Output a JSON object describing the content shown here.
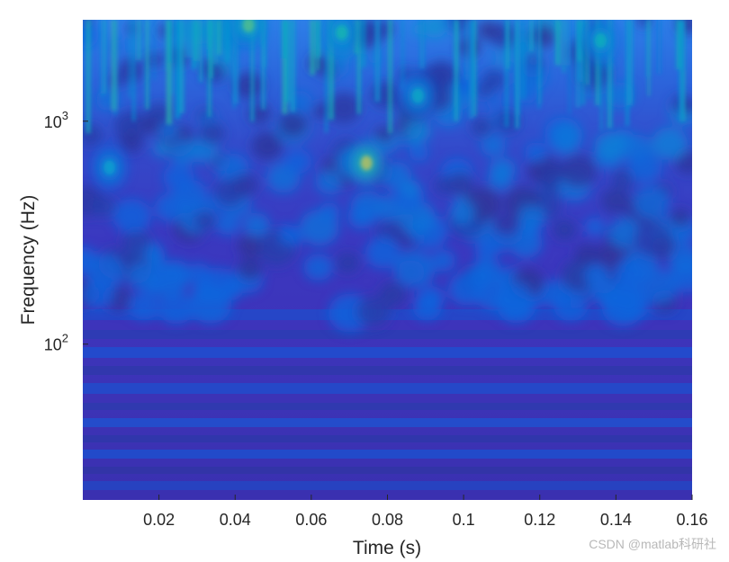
{
  "chart_data": {
    "type": "heatmap",
    "title": "",
    "xlabel": "Time (s)",
    "ylabel": "Frequency (Hz)",
    "xlim": [
      0,
      0.16
    ],
    "ylim": [
      20,
      2850
    ],
    "yscale": "log",
    "x_ticks": [
      0.02,
      0.04,
      0.06,
      0.08,
      0.1,
      0.12,
      0.14,
      0.16
    ],
    "x_tick_labels": [
      "0.02",
      "0.04",
      "0.06",
      "0.08",
      "0.1",
      "0.12",
      "0.14",
      "0.16"
    ],
    "y_ticks": [
      100,
      1000
    ],
    "y_tick_labels": [
      {
        "base": "10",
        "exp": "2"
      },
      {
        "base": "10",
        "exp": "3"
      }
    ],
    "colormap": "parula",
    "grid": false,
    "hotspots": [
      {
        "time": 0.0745,
        "frequency": 650,
        "magnitude": 0.85
      },
      {
        "time": 0.007,
        "frequency": 620,
        "magnitude": 0.45
      },
      {
        "time": 0.0435,
        "frequency": 2700,
        "magnitude": 0.7
      },
      {
        "time": 0.068,
        "frequency": 2500,
        "magnitude": 0.6
      },
      {
        "time": 0.088,
        "frequency": 1300,
        "magnitude": 0.5
      },
      {
        "time": 0.136,
        "frequency": 2300,
        "magnitude": 0.55
      }
    ]
  },
  "watermark": "CSDN @matlab科研社",
  "colors": {
    "background_low": "#3a2fbf",
    "mid": "#2b8fe6",
    "high": "#f6c52e",
    "axis_text": "#262626"
  }
}
